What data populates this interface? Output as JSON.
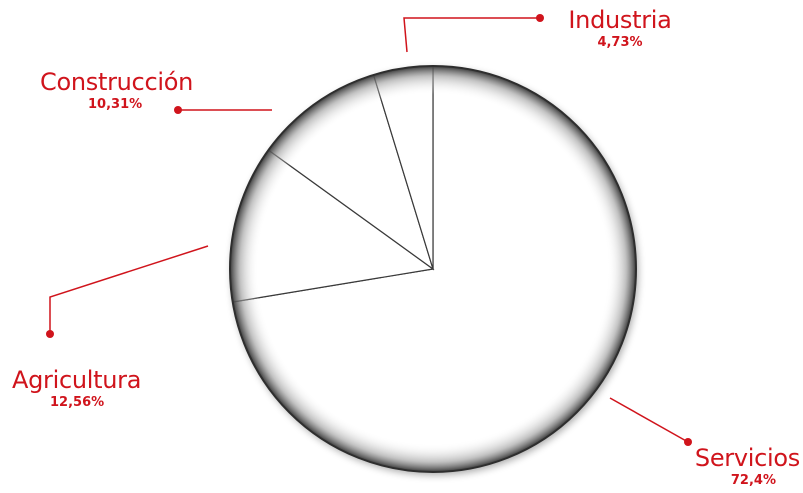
{
  "chart_data": {
    "type": "pie",
    "title": "",
    "slices": [
      {
        "label": "Servicios",
        "value": 72.4,
        "value_label": "72,4%"
      },
      {
        "label": "Agricultura",
        "value": 12.56,
        "value_label": "12,56%"
      },
      {
        "label": "Construcción",
        "value": 10.31,
        "value_label": "10,31%"
      },
      {
        "label": "Industria",
        "value": 4.73,
        "value_label": "4,73%"
      }
    ],
    "start_angle": "12 o'clock",
    "direction": "clockwise",
    "slice_fill": "#ffffff",
    "outline_color": "#3a3a3a",
    "label_color": "#d0141c",
    "legend": "none"
  }
}
